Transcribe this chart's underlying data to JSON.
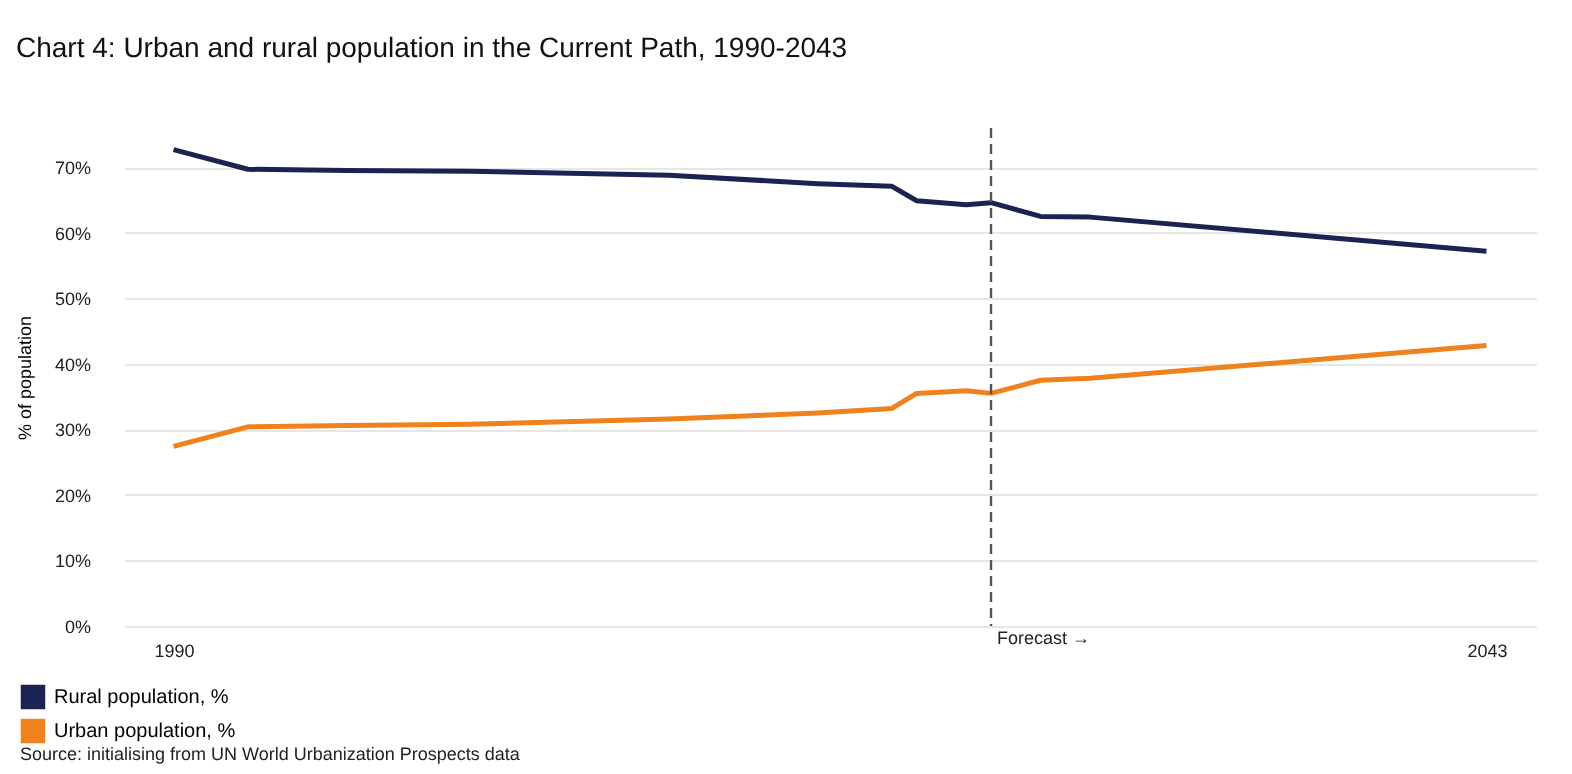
{
  "chart_data": {
    "type": "line",
    "title": "Chart 4: Urban and rural population in the Current Path, 1990-2043",
    "ylabel": "% of population",
    "x": [
      1990,
      1993,
      1997,
      2002,
      2010,
      2016,
      2019,
      2020,
      2022,
      2023,
      2025,
      2027,
      2043
    ],
    "series": [
      {
        "name": "Rural population, %",
        "color": "#1b2352",
        "values": [
          72.7,
          69.7,
          69.5,
          69.4,
          68.8,
          67.5,
          67.1,
          64.9,
          64.3,
          64.6,
          62.5,
          62.4,
          57.2
        ]
      },
      {
        "name": "Urban population, %",
        "color": "#f0821e",
        "values": [
          27.4,
          30.4,
          30.6,
          30.8,
          31.6,
          32.5,
          33.2,
          35.5,
          35.9,
          35.5,
          37.5,
          37.8,
          42.8
        ]
      }
    ],
    "xlim": [
      1988,
      2045
    ],
    "xticks": [
      1990,
      2043
    ],
    "ylim": [
      0,
      76
    ],
    "yticks": [
      {
        "value": 0,
        "label": "0%"
      },
      {
        "value": 10,
        "label": "10%"
      },
      {
        "value": 20,
        "label": "20%"
      },
      {
        "value": 30,
        "label": "30%"
      },
      {
        "value": 40,
        "label": "40%"
      },
      {
        "value": 50,
        "label": "50%"
      },
      {
        "value": 60,
        "label": "60%"
      },
      {
        "value": 70,
        "label": "70%"
      }
    ],
    "ref_lines": [
      {
        "axis": "x",
        "value": 2023,
        "label": "Forecast →",
        "color": "#555555",
        "line_style": "dashed"
      }
    ],
    "grid": "y",
    "legend": "bottom left",
    "marker": "none",
    "line_style": "solid",
    "annotations": [
      "Source: initialising from UN World Urbanization Prospects data"
    ]
  }
}
